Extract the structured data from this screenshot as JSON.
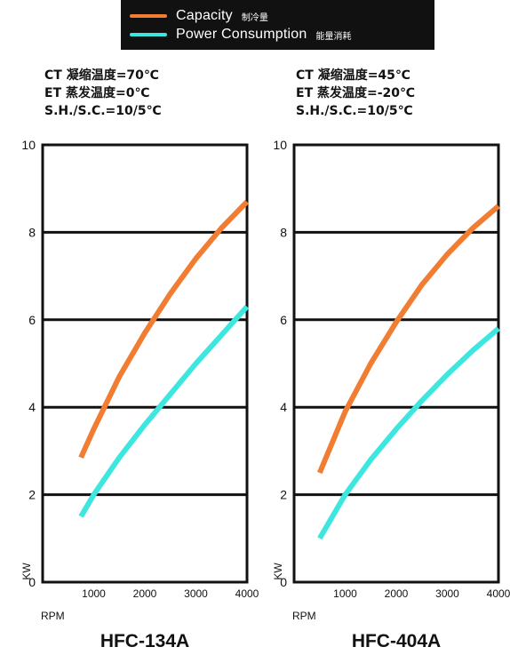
{
  "legend": {
    "capacity": {
      "label": "Capacity",
      "cn": "制冷量",
      "color": "#f07d32"
    },
    "power": {
      "label": "Power Consumption",
      "cn": "能量消耗",
      "color": "#3ee6e0"
    }
  },
  "chart_data": [
    {
      "type": "line",
      "title": "HFC-134A",
      "conditions": [
        "CT 凝缩温度=70℃",
        "ET 蒸发温度=0℃",
        "S.H./S.C.=10/5℃"
      ],
      "xlabel": "RPM",
      "ylabel": "KW",
      "xlim": [
        0,
        4000
      ],
      "ylim": [
        0,
        10
      ],
      "xticks": [
        "1000",
        "2000",
        "3000",
        "4000"
      ],
      "yticks": [
        "0",
        "2",
        "4",
        "6",
        "8",
        "10"
      ],
      "grid": "horizontal",
      "series": [
        {
          "name": "Capacity",
          "color": "#f07d32",
          "x": [
            750,
            1000,
            1500,
            2000,
            2500,
            3000,
            3500,
            4000
          ],
          "y": [
            2.85,
            3.5,
            4.7,
            5.7,
            6.6,
            7.4,
            8.1,
            8.7
          ]
        },
        {
          "name": "Power Consumption",
          "color": "#3ee6e0",
          "x": [
            750,
            1000,
            1500,
            2000,
            2500,
            3000,
            3500,
            4000
          ],
          "y": [
            1.5,
            2.0,
            2.85,
            3.6,
            4.3,
            5.0,
            5.65,
            6.3
          ]
        }
      ]
    },
    {
      "type": "line",
      "title": "HFC-404A",
      "conditions": [
        "CT 凝缩温度=45℃",
        "ET 蒸发温度=-20℃",
        "S.H./S.C.=10/5℃"
      ],
      "xlabel": "RPM",
      "ylabel": "KW",
      "xlim": [
        0,
        4000
      ],
      "ylim": [
        0,
        10
      ],
      "xticks": [
        "1000",
        "2000",
        "3000",
        "4000"
      ],
      "yticks": [
        "0",
        "2",
        "4",
        "6",
        "8",
        "10"
      ],
      "grid": "horizontal",
      "series": [
        {
          "name": "Capacity",
          "color": "#f07d32",
          "x": [
            500,
            1000,
            1500,
            2000,
            2500,
            3000,
            3500,
            4000
          ],
          "y": [
            2.5,
            3.9,
            5.0,
            5.95,
            6.8,
            7.5,
            8.1,
            8.6
          ]
        },
        {
          "name": "Power Consumption",
          "color": "#3ee6e0",
          "x": [
            500,
            1000,
            1500,
            2000,
            2500,
            3000,
            3500,
            4000
          ],
          "y": [
            1.0,
            2.0,
            2.8,
            3.5,
            4.15,
            4.75,
            5.3,
            5.8
          ]
        }
      ]
    }
  ]
}
